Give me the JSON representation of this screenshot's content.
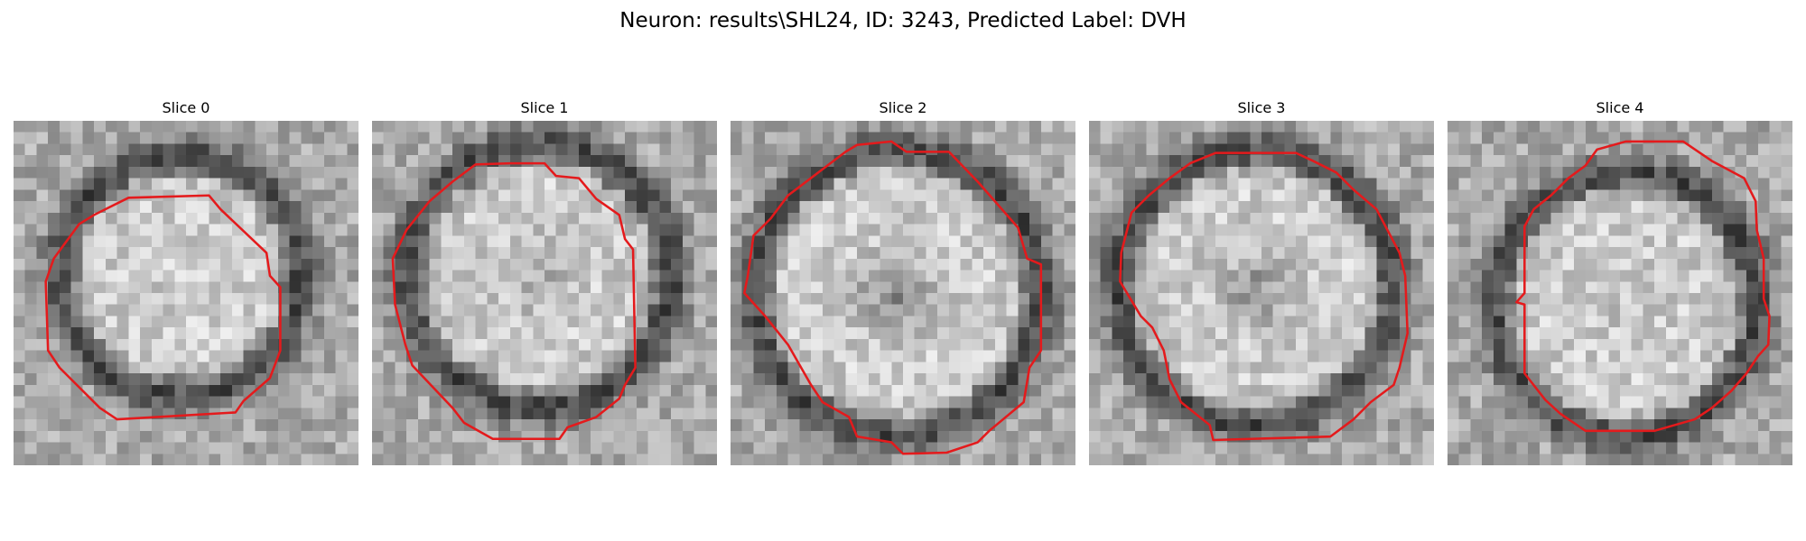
{
  "figure": {
    "title": "Neuron: results\\SHL24, ID: 3243, Predicted Label: DVH"
  },
  "colors": {
    "contour": "#e41a1c",
    "background": "#ffffff"
  },
  "slices": [
    {
      "label": "Slice 0"
    },
    {
      "label": "Slice 1"
    },
    {
      "label": "Slice 2"
    },
    {
      "label": "Slice 3"
    },
    {
      "label": "Slice 4"
    }
  ]
}
